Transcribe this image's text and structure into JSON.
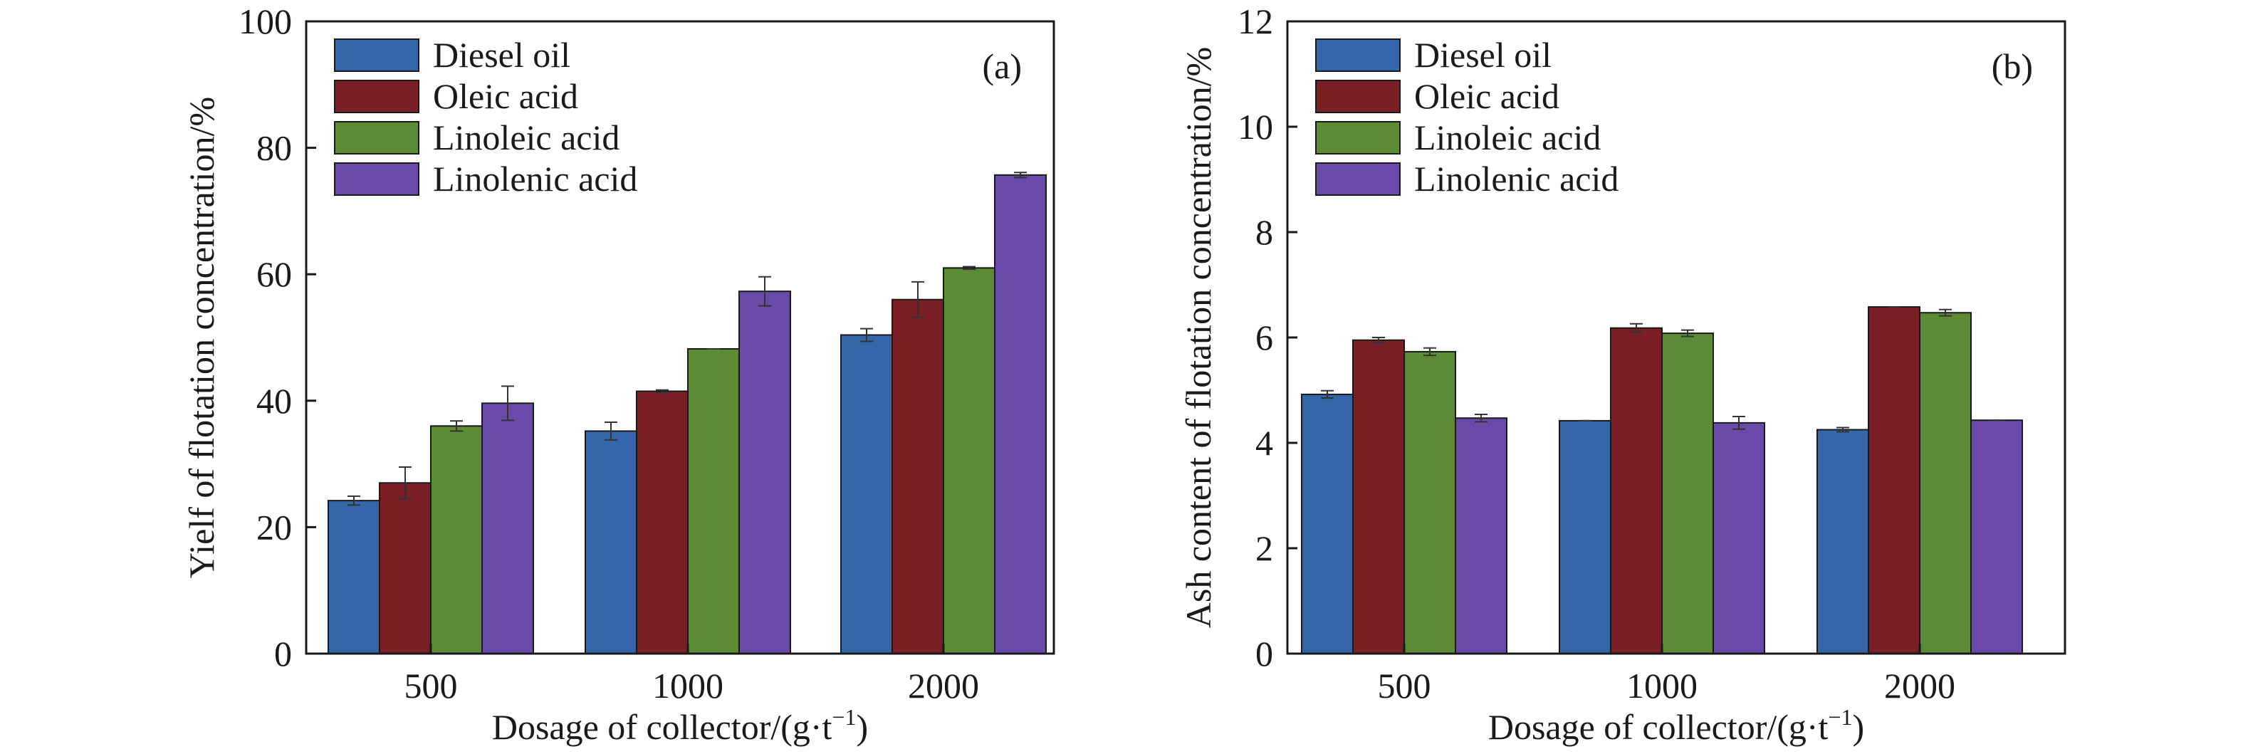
{
  "colors": {
    "diesel": "#3566a8",
    "oleic": "#7b1f27",
    "linoleic": "#5c8a35",
    "linolenic": "#6a4aa8"
  },
  "chart_data": [
    {
      "type": "bar",
      "panel_label": "(a)",
      "xlabel": "Dosage of collector/(g·t",
      "xlabel_sup": "−1",
      "xlabel_close": ")",
      "ylabel": "Yielf of flotation concentration/%",
      "ylim": [
        0,
        100
      ],
      "yticks": [
        "0",
        "20",
        "40",
        "60",
        "80",
        "100"
      ],
      "categories": [
        "500",
        "1000",
        "2000"
      ],
      "legend_position": "top-left",
      "series": [
        {
          "name": "Diesel oil",
          "color_key": "diesel",
          "values": [
            24.2,
            35.2,
            50.4
          ],
          "errors": [
            0.7,
            1.4,
            1.0
          ]
        },
        {
          "name": "Oleic acid",
          "color_key": "oleic",
          "values": [
            27.0,
            41.5,
            56.0
          ],
          "errors": [
            2.5,
            0.2,
            2.8
          ]
        },
        {
          "name": "Linoleic acid",
          "color_key": "linoleic",
          "values": [
            36.0,
            48.2,
            61.0
          ],
          "errors": [
            0.8,
            0.0,
            0.2
          ]
        },
        {
          "name": "Linolenic acid",
          "color_key": "linolenic",
          "values": [
            39.6,
            57.3,
            75.7
          ],
          "errors": [
            2.7,
            2.3,
            0.4
          ]
        }
      ]
    },
    {
      "type": "bar",
      "panel_label": "(b)",
      "xlabel": "Dosage of collector/(g·t",
      "xlabel_sup": "−1",
      "xlabel_close": ")",
      "ylabel": "Ash content of flotation concentration/%",
      "ylim": [
        0,
        12
      ],
      "yticks": [
        "0",
        "2",
        "4",
        "6",
        "8",
        "10",
        "12"
      ],
      "categories": [
        "500",
        "1000",
        "2000"
      ],
      "legend_position": "top-left",
      "series": [
        {
          "name": "Diesel oil",
          "color_key": "diesel",
          "values": [
            4.92,
            4.42,
            4.25
          ],
          "errors": [
            0.07,
            0.0,
            0.04
          ]
        },
        {
          "name": "Oleic acid",
          "color_key": "oleic",
          "values": [
            5.95,
            6.18,
            6.58
          ],
          "errors": [
            0.05,
            0.08,
            0.0
          ]
        },
        {
          "name": "Linoleic acid",
          "color_key": "linoleic",
          "values": [
            5.73,
            6.08,
            6.47
          ],
          "errors": [
            0.07,
            0.06,
            0.06
          ]
        },
        {
          "name": "Linolenic acid",
          "color_key": "linolenic",
          "values": [
            4.47,
            4.38,
            4.43
          ],
          "errors": [
            0.07,
            0.12,
            0.0
          ]
        }
      ]
    }
  ]
}
